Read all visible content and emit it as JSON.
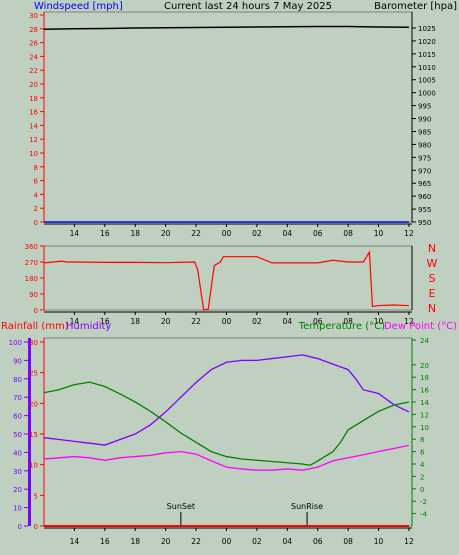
{
  "chart_data": [
    {
      "type": "line",
      "title": "Current last 24 hours 7 May 2025",
      "ylabel_left": "Windspeed [mph]",
      "ylabel_right": "Barometer [hpa]",
      "x_ticks": [
        "14",
        "16",
        "18",
        "20",
        "22",
        "00",
        "02",
        "04",
        "06",
        "08",
        "10",
        "12"
      ],
      "y_left_ticks": [
        "0",
        "2",
        "4",
        "6",
        "8",
        "10",
        "12",
        "14",
        "16",
        "18",
        "20",
        "22",
        "24",
        "26",
        "28",
        "30"
      ],
      "y_left_range": [
        0,
        30
      ],
      "y_right_ticks": [
        "950",
        "955",
        "960",
        "965",
        "970",
        "975",
        "980",
        "985",
        "990",
        "995",
        "1000",
        "1005",
        "1010",
        "1015",
        "1020",
        "1025"
      ],
      "y_right_range": [
        950,
        1025
      ],
      "series": [
        {
          "name": "Windspeed [mph]",
          "color": "#0000ff",
          "x": [
            12,
            36
          ],
          "values": [
            0,
            0
          ]
        },
        {
          "name": "Barometer [hpa]",
          "color": "#000000",
          "x": [
            12,
            14,
            16,
            18,
            20,
            22,
            24,
            26,
            28,
            30,
            32,
            34,
            36
          ],
          "values": [
            1024.5,
            1024.7,
            1024.8,
            1025.0,
            1025.1,
            1025.2,
            1025.3,
            1025.4,
            1025.5,
            1025.6,
            1025.6,
            1025.4,
            1025.3
          ]
        }
      ]
    },
    {
      "type": "line",
      "title": "",
      "ylabel_right": "",
      "x_ticks": [
        "14",
        "16",
        "18",
        "20",
        "22",
        "00",
        "02",
        "04",
        "06",
        "08",
        "10",
        "12"
      ],
      "y_left_ticks": [
        "0",
        "90",
        "180",
        "270",
        "360"
      ],
      "y_left_range": [
        0,
        360
      ],
      "compass_labels": [
        "N",
        "W",
        "S",
        "E",
        "N"
      ],
      "series": [
        {
          "name": "Wind direction",
          "color": "#ff0000",
          "x": [
            12,
            13.2,
            13.5,
            14,
            16,
            18,
            20,
            21.9,
            22.1,
            22.5,
            22.8,
            23.2,
            23.6,
            23.8,
            24.2,
            24.6,
            25,
            26,
            27,
            28,
            29,
            30,
            31,
            32,
            33,
            33.4,
            33.6,
            34,
            35,
            36
          ],
          "values": [
            265,
            275,
            270,
            270,
            268,
            268,
            266,
            270,
            230,
            0,
            5,
            250,
            270,
            300,
            300,
            300,
            300,
            300,
            265,
            265,
            265,
            265,
            280,
            270,
            270,
            325,
            20,
            25,
            28,
            25
          ]
        }
      ]
    },
    {
      "type": "line",
      "ylabel_left_outer": "Rainfall (mm)",
      "ylabel_left_inner": "Humidity",
      "ylabel_right": "Temperature (°C)",
      "ylabel_right2": "Dew Point (°C)",
      "x_ticks": [
        "14",
        "16",
        "18",
        "20",
        "22",
        "00",
        "02",
        "04",
        "06",
        "08",
        "10",
        "12"
      ],
      "rain_ticks": [
        "0",
        "5",
        "10",
        "15",
        "20",
        "25",
        "30"
      ],
      "rain_range": [
        0,
        30
      ],
      "humidity_ticks": [
        "0",
        "10",
        "20",
        "30",
        "40",
        "50",
        "60",
        "70",
        "80",
        "90",
        "100"
      ],
      "humidity_range": [
        0,
        100
      ],
      "temp_ticks": [
        "-4",
        "-2",
        "0",
        "2",
        "4",
        "6",
        "8",
        "10",
        "12",
        "14",
        "16",
        "18",
        "20",
        "24"
      ],
      "temp_range": [
        -6,
        24
      ],
      "annotations": [
        {
          "text": "SunSet",
          "x": 21.0
        },
        {
          "text": "SunRise",
          "x": 29.3
        }
      ],
      "series": [
        {
          "name": "Rainfall (mm)",
          "axis": "rain",
          "color": "#ff0000",
          "x": [
            12,
            36
          ],
          "values": [
            0,
            0
          ]
        },
        {
          "name": "Humidity",
          "axis": "humidity",
          "color": "#8000ff",
          "x": [
            12,
            13,
            14,
            15,
            16,
            17,
            18,
            19,
            20,
            21,
            22,
            23,
            24,
            25,
            26,
            27,
            28,
            29,
            30,
            31,
            32,
            32.5,
            33,
            33.5,
            34,
            35,
            36
          ],
          "values": [
            48,
            47,
            46,
            45,
            44,
            47,
            50,
            55,
            62,
            70,
            78,
            85,
            89,
            90,
            90,
            91,
            92,
            93,
            91,
            88,
            85,
            80,
            74,
            73,
            72,
            66,
            62
          ]
        },
        {
          "name": "Temperature (°C)",
          "axis": "temp",
          "color": "#008000",
          "x": [
            12,
            13,
            14,
            15,
            16,
            17,
            18,
            19,
            20,
            21,
            22,
            23,
            24,
            25,
            26,
            27,
            28,
            29,
            29.5,
            30,
            31,
            31.5,
            32,
            33,
            34,
            35,
            36
          ],
          "values": [
            15.5,
            16.0,
            16.8,
            17.2,
            16.5,
            15.3,
            14.0,
            12.5,
            10.8,
            9.0,
            7.5,
            6.0,
            5.2,
            4.8,
            4.6,
            4.4,
            4.2,
            4.0,
            3.8,
            4.5,
            6.0,
            7.5,
            9.5,
            11.0,
            12.5,
            13.5,
            14.0
          ]
        },
        {
          "name": "Dew Point (°C)",
          "axis": "temp",
          "color": "#ff00ff",
          "x": [
            12,
            13,
            14,
            15,
            16,
            17,
            18,
            19,
            20,
            21,
            22,
            23,
            24,
            25,
            26,
            27,
            28,
            29,
            30,
            31,
            32,
            33,
            34,
            35,
            36
          ],
          "values": [
            4.8,
            5.0,
            5.2,
            5.0,
            4.6,
            5.0,
            5.2,
            5.4,
            5.8,
            6.0,
            5.6,
            4.5,
            3.5,
            3.2,
            3.0,
            3.0,
            3.2,
            3.0,
            3.5,
            4.5,
            5.0,
            5.5,
            6.0,
            6.5,
            7.0
          ]
        }
      ]
    }
  ]
}
